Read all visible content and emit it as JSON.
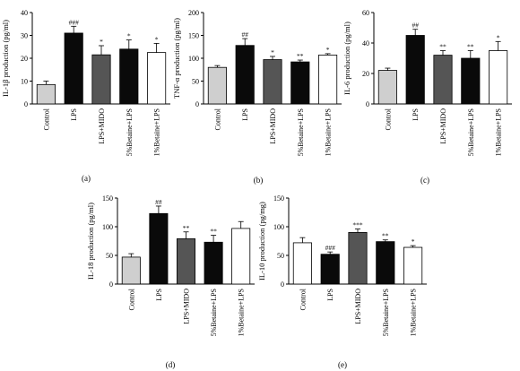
{
  "colors": {
    "light_gray": "#cfcfcf",
    "black": "#0a0a0a",
    "dark_gray": "#555555",
    "white": "#ffffff"
  },
  "chart_data": [
    {
      "panel": "(a)",
      "type": "bar",
      "ylabel": "IL-1β production (pg/ml)",
      "yticks": [
        0,
        10,
        20,
        30,
        40
      ],
      "ylim": [
        0,
        40
      ],
      "categories": [
        "Control",
        "LPS",
        "LPS+MIDO",
        "5%Betaine+LPS",
        "1%Betaine+LPS"
      ],
      "values": [
        8.5,
        31,
        21.5,
        24,
        22.5
      ],
      "errors": [
        1.5,
        3,
        4,
        4,
        4
      ],
      "significance": [
        "",
        "###",
        "*",
        "*",
        "*"
      ],
      "bar_colors": [
        "light_gray",
        "black",
        "dark_gray",
        "black",
        "white"
      ]
    },
    {
      "panel": "(b)",
      "type": "bar",
      "ylabel": "TNF-α production (pg/ml)",
      "yticks": [
        0,
        50,
        100,
        150,
        200
      ],
      "ylim": [
        0,
        200
      ],
      "categories": [
        "Control",
        "LPS",
        "LPS+MIDO",
        "5%Betaine+LPS",
        "1%Betaine+LPS"
      ],
      "values": [
        80,
        128,
        97,
        92,
        107
      ],
      "errors": [
        4,
        15,
        7,
        4,
        3
      ],
      "significance": [
        "",
        "##",
        "*",
        "**",
        "*"
      ],
      "bar_colors": [
        "light_gray",
        "black",
        "dark_gray",
        "black",
        "white"
      ]
    },
    {
      "panel": "(c)",
      "type": "bar",
      "ylabel": "IL-6 production (pg/ml)",
      "yticks": [
        0,
        20,
        40,
        60
      ],
      "ylim": [
        0,
        60
      ],
      "categories": [
        "Control",
        "LPS",
        "LPS+MIDO",
        "5%Betaine+LPS",
        "1%Betaine+LPS"
      ],
      "values": [
        22,
        45,
        32,
        30,
        35
      ],
      "errors": [
        1.5,
        4,
        3,
        5,
        6
      ],
      "significance": [
        "",
        "##",
        "**",
        "**",
        "*"
      ],
      "bar_colors": [
        "light_gray",
        "black",
        "dark_gray",
        "black",
        "white"
      ]
    },
    {
      "panel": "(d)",
      "type": "bar",
      "ylabel": "IL-18 production (pg/ml)",
      "yticks": [
        0,
        50,
        100,
        150
      ],
      "ylim": [
        0,
        150
      ],
      "categories": [
        "Control",
        "LPS",
        "LPS+MIDO",
        "5%Betaine+LPS",
        "1%Betaine+LPS"
      ],
      "values": [
        47,
        123,
        79,
        73,
        97
      ],
      "errors": [
        6,
        13,
        12,
        12,
        12
      ],
      "significance": [
        "",
        "##",
        "**",
        "**",
        ""
      ],
      "bar_colors": [
        "light_gray",
        "black",
        "dark_gray",
        "black",
        "white"
      ]
    },
    {
      "panel": "(e)",
      "type": "bar",
      "ylabel": "IL-10 production (pg/mg)",
      "yticks": [
        0,
        50,
        100,
        150
      ],
      "ylim": [
        0,
        150
      ],
      "categories": [
        "Control",
        "LPS",
        "LPS+MIDO",
        "5%Betaine+LPS",
        "1%Betaine+LPS"
      ],
      "values": [
        72,
        52,
        90,
        74,
        64
      ],
      "errors": [
        9,
        4,
        6,
        3,
        3
      ],
      "significance": [
        "",
        "###",
        "***",
        "**",
        "*"
      ],
      "bar_colors": [
        "white",
        "black",
        "dark_gray",
        "black",
        "white"
      ]
    }
  ]
}
